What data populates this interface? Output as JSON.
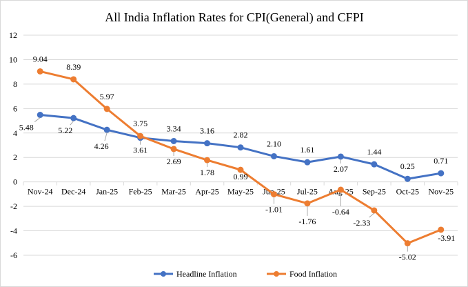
{
  "chart_data": {
    "type": "line",
    "title": "All India Inflation Rates for CPI(General) and CFPI",
    "categories": [
      "Nov-24",
      "Dec-24",
      "Jan-25",
      "Feb-25",
      "Mar-25",
      "Apr-25",
      "May-25",
      "Jun-25",
      "Jul-25",
      "Aug-25",
      "Sep-25",
      "Oct-25",
      "Nov-25"
    ],
    "series": [
      {
        "name": "Headline Inflation",
        "color": "#4472C4",
        "values": [
          5.48,
          5.22,
          4.26,
          3.61,
          3.34,
          3.16,
          2.82,
          2.1,
          1.61,
          2.07,
          1.44,
          0.25,
          0.71
        ],
        "labels": [
          "5.48",
          "5.22",
          "4.26",
          "3.61",
          "3.34",
          "3.16",
          "2.82",
          "2.10",
          "1.61",
          "2.07",
          "1.44",
          "0.25",
          "0.71"
        ]
      },
      {
        "name": "Food Inflation",
        "color": "#ED7D31",
        "values": [
          9.04,
          8.39,
          5.97,
          3.75,
          2.69,
          1.78,
          0.99,
          -1.01,
          -1.76,
          -0.64,
          -2.33,
          -5.02,
          -3.91
        ],
        "labels": [
          "9.04",
          "8.39",
          "5.97",
          "3.75",
          "2.69",
          "1.78",
          "0.99",
          "-1.01",
          "-1.76",
          "-0.64",
          "-2.33",
          "-5.02",
          "-3.91"
        ]
      }
    ],
    "ylim": [
      -6,
      12
    ],
    "yticks": [
      "-6",
      "-4",
      "-2",
      "0",
      "2",
      "4",
      "6",
      "8",
      "10",
      "12"
    ],
    "grid": true,
    "legend": "bottom"
  }
}
